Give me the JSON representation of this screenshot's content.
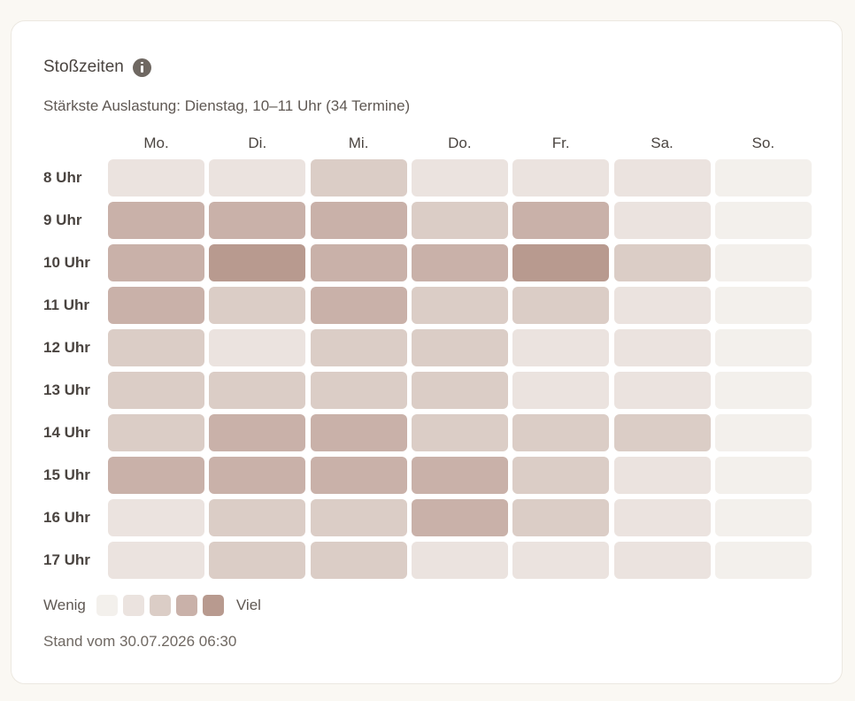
{
  "card": {
    "title": "Stoßzeiten",
    "icon": "info-icon",
    "subtitle": "Stärkste Auslastung: Dienstag, 10–11 Uhr (34 Termine)",
    "footer": "Stand vom 30.07.2026 06:30"
  },
  "legend": {
    "low_label": "Wenig",
    "high_label": "Viel"
  },
  "colors": {
    "level_0": "#f3f0ec",
    "level_1": "#ebe3df",
    "level_2": "#dbcdc6",
    "level_3": "#c9b1a9",
    "level_4": "#b89a8f"
  },
  "chart_data": {
    "type": "heatmap",
    "title": "Stoßzeiten",
    "x": [
      "Mo.",
      "Di.",
      "Mi.",
      "Do.",
      "Fr.",
      "Sa.",
      "So."
    ],
    "y": [
      "8 Uhr",
      "9 Uhr",
      "10 Uhr",
      "11 Uhr",
      "12 Uhr",
      "13 Uhr",
      "14 Uhr",
      "15 Uhr",
      "16 Uhr",
      "17 Uhr"
    ],
    "levels": 5,
    "values": [
      [
        1,
        1,
        2,
        1,
        1,
        1,
        0
      ],
      [
        3,
        3,
        3,
        2,
        3,
        1,
        0
      ],
      [
        3,
        4,
        3,
        3,
        4,
        2,
        0
      ],
      [
        3,
        2,
        3,
        2,
        2,
        1,
        0
      ],
      [
        2,
        1,
        2,
        2,
        1,
        1,
        0
      ],
      [
        2,
        2,
        2,
        2,
        1,
        1,
        0
      ],
      [
        2,
        3,
        3,
        2,
        2,
        2,
        0
      ],
      [
        3,
        3,
        3,
        3,
        2,
        1,
        0
      ],
      [
        1,
        2,
        2,
        3,
        2,
        1,
        0
      ],
      [
        1,
        2,
        2,
        1,
        1,
        1,
        0
      ]
    ],
    "legend": [
      "Wenig",
      "Viel"
    ]
  }
}
